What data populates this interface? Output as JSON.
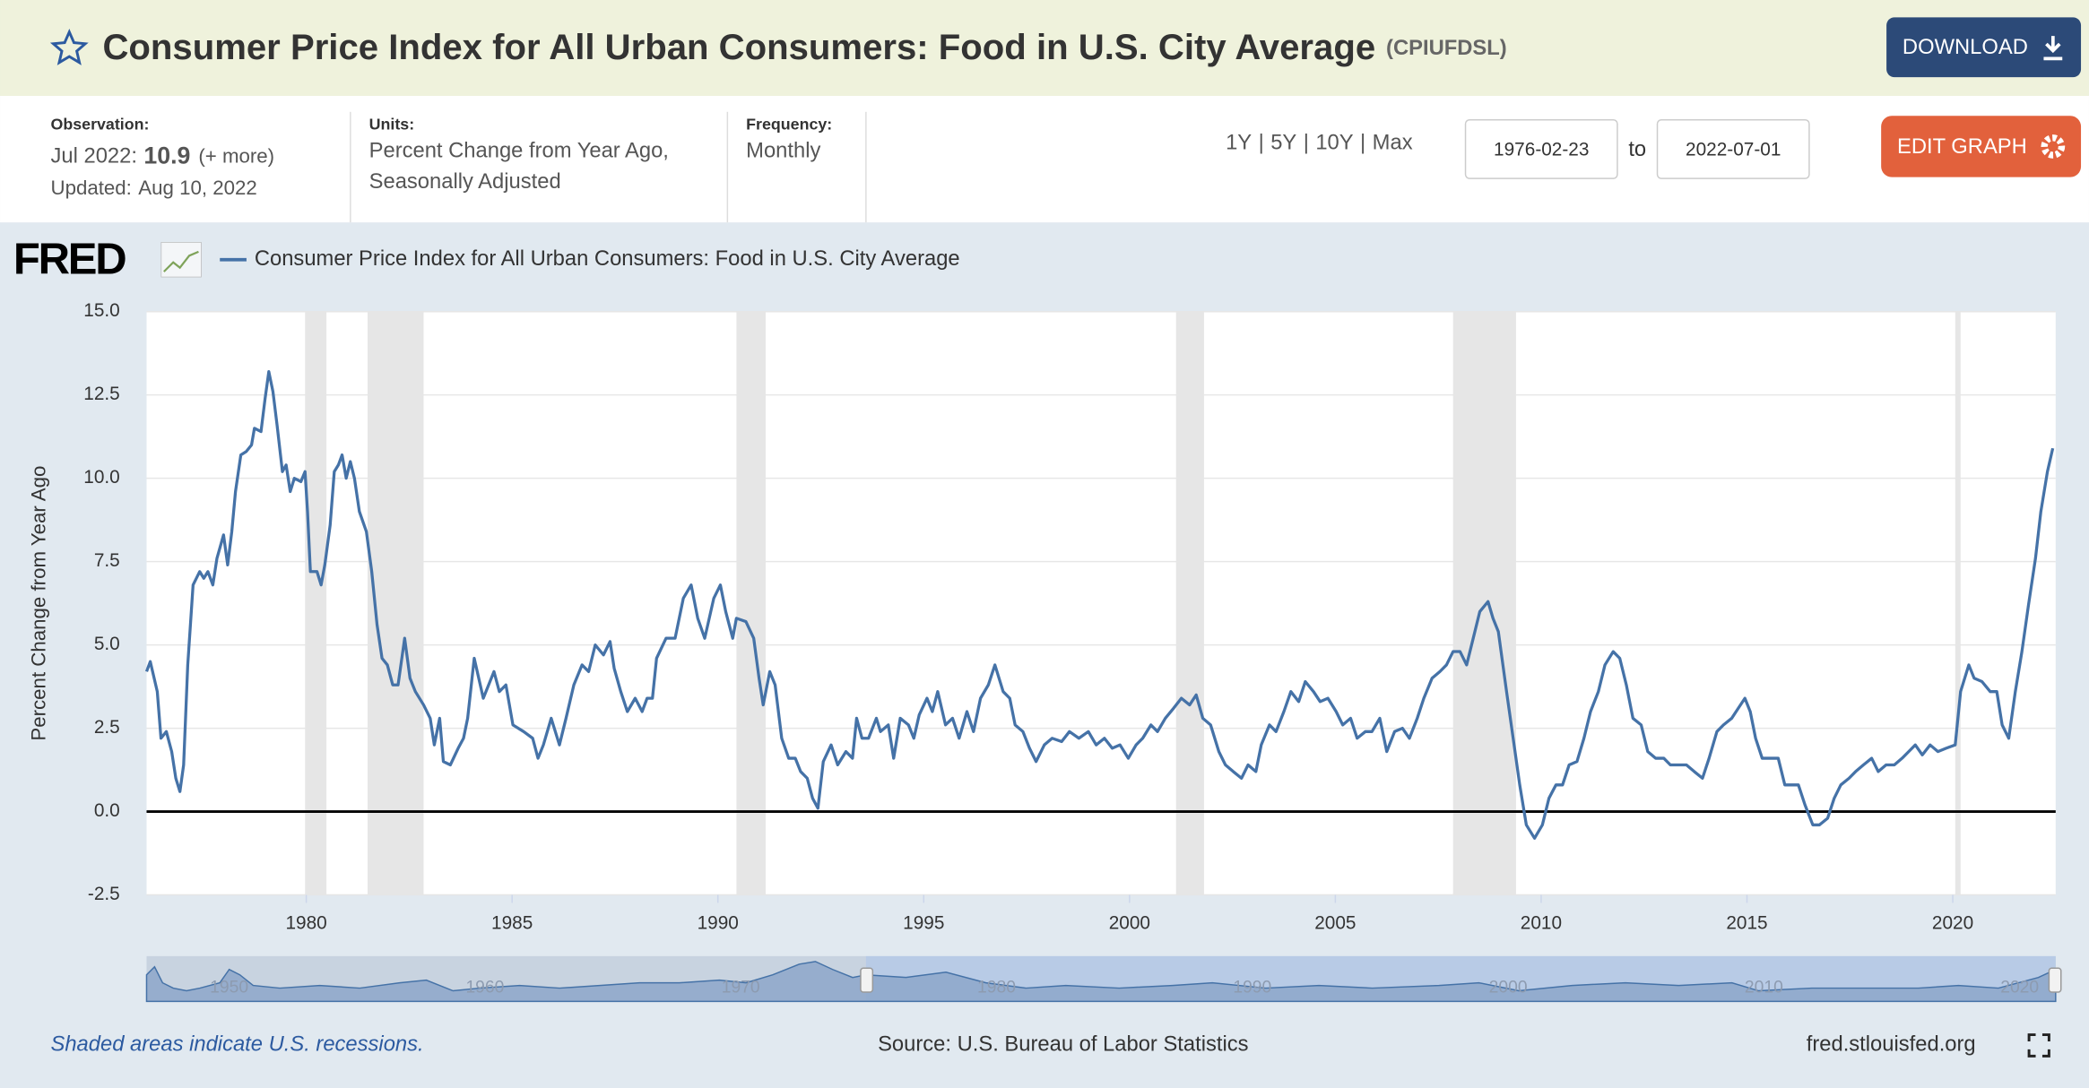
{
  "header": {
    "title": "Consumer Price Index for All Urban Consumers: Food in U.S. City Average",
    "series_id": "(CPIUFDSL)",
    "download": "DOWNLOAD"
  },
  "info": {
    "observation_label": "Observation:",
    "observation_date": "Jul 2022:",
    "observation_value": "10.9",
    "more": "(+ more)",
    "updated_label": "Updated:",
    "updated_date": "Aug 10, 2022",
    "units_label": "Units:",
    "units": [
      "Percent Change from Year Ago,",
      "Seasonally Adjusted"
    ],
    "frequency_label": "Frequency:",
    "frequency": "Monthly"
  },
  "controls": {
    "ranges": [
      "1Y",
      "5Y",
      "10Y",
      "Max"
    ],
    "separator": "|",
    "start_date": "1976-02-23",
    "to": "to",
    "end_date": "2022-07-01",
    "edit_graph": "EDIT GRAPH"
  },
  "brand": "FRED",
  "chart_data": {
    "type": "line",
    "y_label": "Percent Change from Year Ago",
    "xlim": [
      1976.12,
      2022.5
    ],
    "xticks": [
      1980,
      1985,
      1990,
      1995,
      2000,
      2005,
      2010,
      2015,
      2020
    ],
    "ylim": [
      -2.5,
      15
    ],
    "yticks": [
      -2.5,
      {
        "value": 0,
        "label": "0.0"
      },
      2.5,
      {
        "value": 5,
        "label": "5.0"
      },
      7.5,
      {
        "value": 10,
        "label": "10.0"
      },
      12.5,
      {
        "value": 15,
        "label": "15.0"
      }
    ],
    "grid": true,
    "recessions": [
      [
        1979.97,
        1980.49
      ],
      [
        1981.49,
        1982.85
      ],
      [
        1990.45,
        1991.16
      ],
      [
        2001.13,
        2001.81
      ],
      [
        2007.86,
        2009.39
      ],
      [
        2020.06,
        2020.19
      ]
    ],
    "x": [
      1976.12,
      1976.21,
      1976.38,
      1976.47,
      1976.6,
      1976.73,
      1976.83,
      1976.93,
      1977.02,
      1977.12,
      1977.25,
      1977.41,
      1977.51,
      1977.61,
      1977.73,
      1977.83,
      1977.99,
      1978.09,
      1978.19,
      1978.28,
      1978.41,
      1978.54,
      1978.67,
      1978.74,
      1978.9,
      1979.0,
      1979.09,
      1979.19,
      1979.29,
      1979.42,
      1979.51,
      1979.61,
      1979.71,
      1979.87,
      1979.97,
      1980.03,
      1980.1,
      1980.26,
      1980.36,
      1980.45,
      1980.58,
      1980.68,
      1980.78,
      1980.87,
      1980.97,
      1981.07,
      1981.17,
      1981.29,
      1981.46,
      1981.59,
      1981.72,
      1981.84,
      1981.97,
      1982.1,
      1982.23,
      1982.39,
      1982.52,
      1982.65,
      1982.85,
      1983.01,
      1983.11,
      1983.24,
      1983.33,
      1983.5,
      1983.69,
      1983.82,
      1983.92,
      1984.08,
      1984.3,
      1984.43,
      1984.56,
      1984.69,
      1984.85,
      1985.02,
      1985.28,
      1985.5,
      1985.63,
      1985.76,
      1985.95,
      1986.15,
      1986.31,
      1986.5,
      1986.7,
      1986.86,
      1987.02,
      1987.22,
      1987.38,
      1987.48,
      1987.64,
      1987.8,
      1987.99,
      1988.16,
      1988.28,
      1988.41,
      1988.51,
      1988.74,
      1988.96,
      1989.16,
      1989.35,
      1989.51,
      1989.68,
      1989.9,
      1990.06,
      1990.19,
      1990.36,
      1990.45,
      1990.68,
      1990.87,
      1991.0,
      1991.1,
      1991.26,
      1991.39,
      1991.55,
      1991.72,
      1991.88,
      1992.01,
      1992.17,
      1992.3,
      1992.43,
      1992.56,
      1992.75,
      1992.91,
      1993.11,
      1993.27,
      1993.37,
      1993.5,
      1993.66,
      1993.85,
      1993.95,
      1994.14,
      1994.27,
      1994.43,
      1994.63,
      1994.76,
      1994.89,
      1995.08,
      1995.21,
      1995.34,
      1995.53,
      1995.7,
      1995.86,
      1996.05,
      1996.21,
      1996.38,
      1996.57,
      1996.73,
      1996.93,
      1997.09,
      1997.22,
      1997.41,
      1997.57,
      1997.73,
      1997.93,
      1998.12,
      1998.35,
      1998.54,
      1998.77,
      1999.0,
      1999.19,
      1999.39,
      1999.58,
      1999.77,
      1999.97,
      2000.16,
      2000.32,
      2000.52,
      2000.68,
      2000.87,
      2001.07,
      2001.26,
      2001.46,
      2001.62,
      2001.78,
      2001.97,
      2002.17,
      2002.33,
      2002.52,
      2002.72,
      2002.88,
      2003.07,
      2003.2,
      2003.4,
      2003.56,
      2003.75,
      2003.92,
      2004.11,
      2004.27,
      2004.47,
      2004.63,
      2004.82,
      2005.02,
      2005.18,
      2005.37,
      2005.53,
      2005.73,
      2005.89,
      2006.08,
      2006.25,
      2006.44,
      2006.63,
      2006.8,
      2006.99,
      2007.15,
      2007.35,
      2007.54,
      2007.7,
      2007.86,
      2008.03,
      2008.19,
      2008.35,
      2008.51,
      2008.71,
      2008.83,
      2008.96,
      2009.16,
      2009.32,
      2009.48,
      2009.64,
      2009.84,
      2010.03,
      2010.19,
      2010.36,
      2010.52,
      2010.68,
      2010.87,
      2011.04,
      2011.2,
      2011.39,
      2011.55,
      2011.75,
      2011.91,
      2012.07,
      2012.23,
      2012.43,
      2012.59,
      2012.78,
      2012.98,
      2013.14,
      2013.33,
      2013.53,
      2013.72,
      2013.92,
      2014.08,
      2014.27,
      2014.43,
      2014.63,
      2014.79,
      2014.95,
      2015.08,
      2015.21,
      2015.37,
      2015.53,
      2015.76,
      2015.92,
      2016.08,
      2016.25,
      2016.41,
      2016.6,
      2016.76,
      2016.96,
      2017.12,
      2017.28,
      2017.48,
      2017.64,
      2017.83,
      2018.03,
      2018.19,
      2018.38,
      2018.58,
      2018.77,
      2018.93,
      2019.09,
      2019.26,
      2019.45,
      2019.64,
      2019.84,
      2020.06,
      2020.19,
      2020.39,
      2020.52,
      2020.71,
      2020.91,
      2021.07,
      2021.2,
      2021.36,
      2021.52,
      2021.68,
      2021.84,
      2022.01,
      2022.14,
      2022.3,
      2022.43
    ],
    "series": [
      {
        "name": "Consumer Price Index for All Urban Consumers: Food in U.S. City Average",
        "color": "#4572a7",
        "values": [
          4.2,
          4.5,
          3.6,
          2.2,
          2.4,
          1.8,
          1.0,
          0.6,
          1.4,
          4.4,
          6.8,
          7.2,
          7.0,
          7.2,
          6.8,
          7.6,
          8.3,
          7.4,
          8.4,
          9.6,
          10.7,
          10.8,
          11.0,
          11.5,
          11.4,
          12.4,
          13.2,
          12.6,
          11.6,
          10.2,
          10.4,
          9.6,
          10.0,
          9.9,
          10.2,
          9.0,
          7.2,
          7.2,
          6.8,
          7.4,
          8.6,
          10.2,
          10.4,
          10.7,
          10.0,
          10.5,
          10.0,
          9.0,
          8.4,
          7.2,
          5.6,
          4.6,
          4.4,
          3.8,
          3.8,
          5.2,
          4.0,
          3.6,
          3.2,
          2.8,
          2.0,
          2.8,
          1.5,
          1.4,
          1.9,
          2.2,
          2.8,
          4.6,
          3.4,
          3.8,
          4.2,
          3.6,
          3.8,
          2.6,
          2.4,
          2.2,
          1.6,
          2.0,
          2.8,
          2.0,
          2.8,
          3.8,
          4.4,
          4.2,
          5.0,
          4.7,
          5.1,
          4.3,
          3.6,
          3.0,
          3.4,
          3.0,
          3.4,
          3.4,
          4.6,
          5.2,
          5.2,
          6.4,
          6.8,
          5.8,
          5.2,
          6.4,
          6.8,
          6.0,
          5.2,
          5.8,
          5.7,
          5.2,
          4.0,
          3.2,
          4.2,
          3.8,
          2.2,
          1.6,
          1.6,
          1.2,
          1.0,
          0.4,
          0.1,
          1.5,
          2.0,
          1.4,
          1.8,
          1.6,
          2.8,
          2.2,
          2.2,
          2.8,
          2.4,
          2.6,
          1.6,
          2.8,
          2.6,
          2.2,
          2.9,
          3.4,
          3.0,
          3.6,
          2.6,
          2.8,
          2.2,
          3.0,
          2.4,
          3.4,
          3.8,
          4.4,
          3.6,
          3.4,
          2.6,
          2.4,
          1.9,
          1.5,
          2.0,
          2.2,
          2.1,
          2.4,
          2.2,
          2.4,
          2.0,
          2.2,
          1.9,
          2.0,
          1.6,
          2.0,
          2.2,
          2.6,
          2.4,
          2.8,
          3.1,
          3.4,
          3.2,
          3.5,
          2.8,
          2.6,
          1.8,
          1.4,
          1.2,
          1.0,
          1.4,
          1.2,
          2.0,
          2.6,
          2.4,
          3.0,
          3.6,
          3.3,
          3.9,
          3.6,
          3.3,
          3.4,
          3.0,
          2.6,
          2.8,
          2.2,
          2.4,
          2.4,
          2.8,
          1.8,
          2.4,
          2.5,
          2.2,
          2.8,
          3.4,
          4.0,
          4.2,
          4.4,
          4.8,
          4.8,
          4.4,
          5.2,
          6.0,
          6.3,
          5.8,
          5.4,
          3.6,
          2.2,
          0.8,
          -0.4,
          -0.8,
          -0.4,
          0.4,
          0.8,
          0.8,
          1.4,
          1.5,
          2.2,
          3.0,
          3.6,
          4.4,
          4.8,
          4.6,
          3.8,
          2.8,
          2.6,
          1.8,
          1.6,
          1.6,
          1.4,
          1.4,
          1.4,
          1.2,
          1.0,
          1.6,
          2.4,
          2.6,
          2.8,
          3.1,
          3.4,
          3.0,
          2.2,
          1.6,
          1.6,
          1.6,
          0.8,
          0.8,
          0.8,
          0.2,
          -0.4,
          -0.4,
          -0.2,
          0.4,
          0.8,
          1.0,
          1.2,
          1.4,
          1.6,
          1.2,
          1.4,
          1.4,
          1.6,
          1.8,
          2.0,
          1.7,
          2.0,
          1.8,
          1.9,
          2.0,
          3.6,
          4.4,
          4.0,
          3.9,
          3.6,
          3.6,
          2.6,
          2.2,
          3.6,
          4.8,
          6.2,
          7.6,
          9.0,
          10.2,
          10.9
        ]
      }
    ]
  },
  "navigator": {
    "labels": [
      "1950",
      "1960",
      "1970",
      "1980",
      "1990",
      "2000",
      "2010",
      "2020"
    ]
  },
  "footer": {
    "note": "Shaded areas indicate U.S. recessions.",
    "source": "Source: U.S. Bureau of Labor Statistics",
    "site": "fred.stlouisfed.org"
  }
}
